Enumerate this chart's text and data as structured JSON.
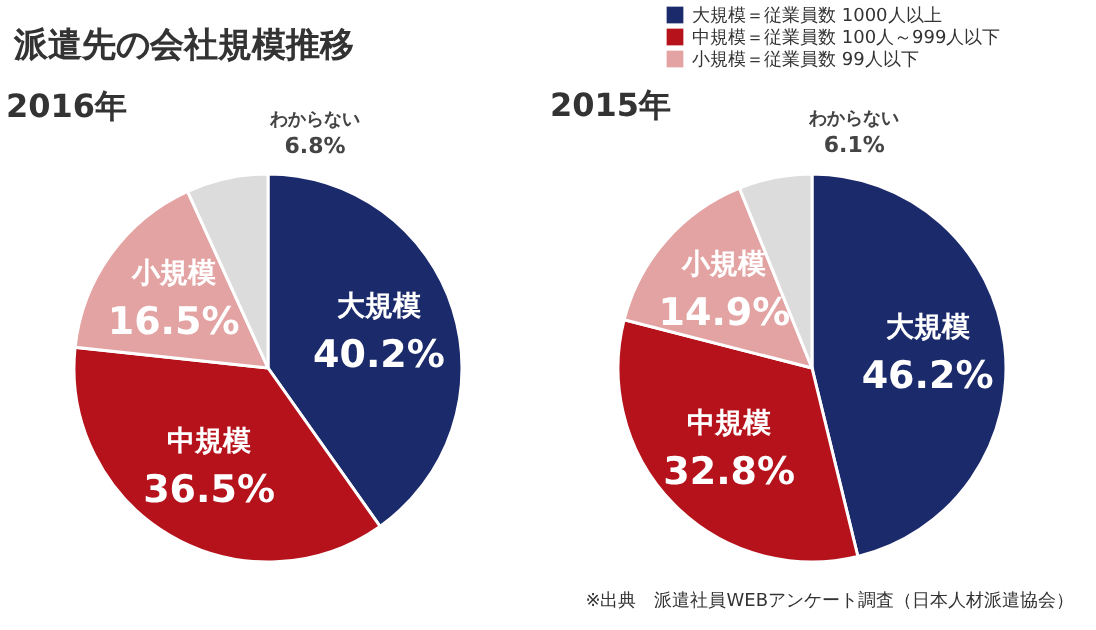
{
  "chart_data": [
    {
      "type": "pie",
      "title": "2016年",
      "categories": [
        "大規模",
        "中規模",
        "小規模",
        "わからない"
      ],
      "values": [
        40.2,
        36.5,
        16.5,
        6.8
      ],
      "colors": [
        "#1b2a6b",
        "#b5121b",
        "#e3a3a3",
        "#dcdcdc"
      ],
      "value_labels": [
        "40.2%",
        "36.5%",
        "16.5%",
        "6.8%"
      ]
    },
    {
      "type": "pie",
      "title": "2015年",
      "categories": [
        "大規模",
        "中規模",
        "小規模",
        "わからない"
      ],
      "values": [
        46.2,
        32.8,
        14.9,
        6.1
      ],
      "colors": [
        "#1b2a6b",
        "#b5121b",
        "#e3a3a3",
        "#dcdcdc"
      ],
      "value_labels": [
        "46.2%",
        "32.8%",
        "14.9%",
        "6.1%"
      ]
    },
    {
      "type": "other",
      "title": "派遣先の会社規模推移",
      "categories": [
        "大規模＝従業員数 1000人以上",
        "中規模＝従業員数 100人～999人以下",
        "小規模＝従業員数 99人以下"
      ],
      "colors": [
        "#1b2a6b",
        "#b5121b",
        "#e3a3a3"
      ],
      "annotations": [
        "※出典　派遣社員WEBアンケート調査（日本人材派遣協会）"
      ]
    }
  ]
}
